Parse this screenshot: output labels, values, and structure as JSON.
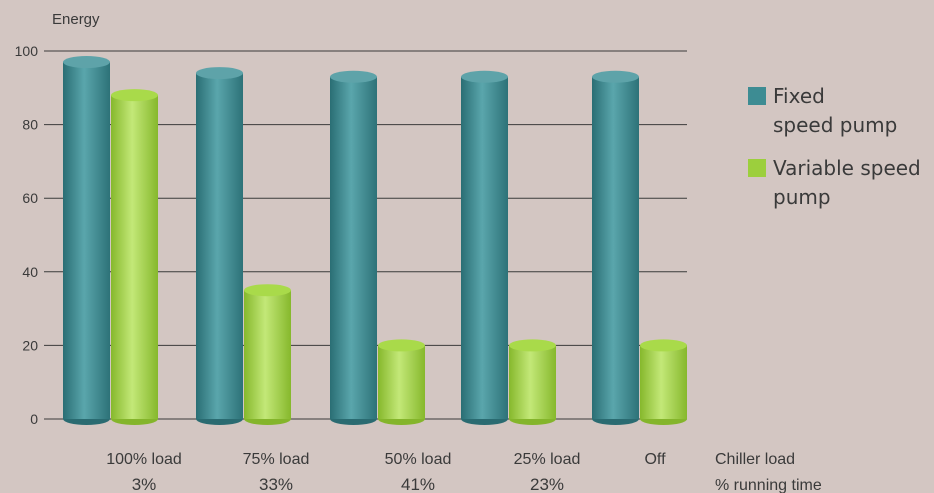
{
  "chart_data": {
    "type": "bar",
    "ylabel": "Energy",
    "ylim": [
      0,
      100
    ],
    "yticks": [
      0,
      20,
      40,
      60,
      80,
      100
    ],
    "grid": true,
    "categories": [
      {
        "label": "100% load",
        "sub": "3%"
      },
      {
        "label": "75% load",
        "sub": "33%"
      },
      {
        "label": "50% load",
        "sub": "41%"
      },
      {
        "label": "25% load",
        "sub": "23%"
      },
      {
        "label": "Off",
        "sub": ""
      }
    ],
    "axis_caption": {
      "line1": "Chiller load",
      "line2": "% running time"
    },
    "series": [
      {
        "name": "Fixed\nspeed pump",
        "values": [
          97,
          94,
          93,
          93,
          93
        ],
        "color": "#3d8c93"
      },
      {
        "name": "Variable speed\npump",
        "values": [
          88,
          35,
          20,
          20,
          20
        ],
        "color": "#9ccf3d"
      }
    ],
    "legend_position": "right"
  }
}
